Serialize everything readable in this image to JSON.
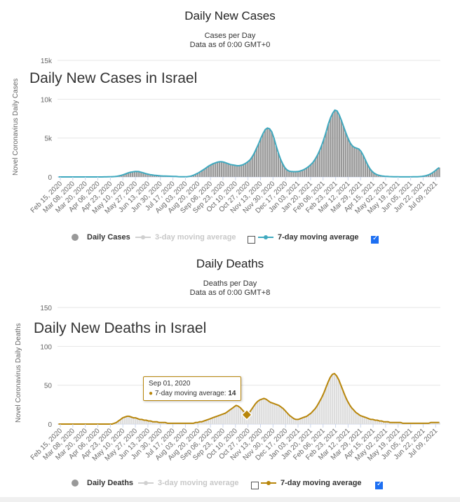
{
  "chart_data": [
    {
      "type": "bar",
      "title": "Daily New Cases",
      "subtitle": "Cases per Day",
      "subtitle2": "Data as of 0:00 GMT+0",
      "overlay_title": "Daily New Cases in Israel",
      "ylabel": "Novel Coronavirus Daily Cases",
      "ylim": [
        0,
        15000
      ],
      "yticks": [
        "0",
        "5k",
        "10k",
        "15k"
      ],
      "xticks": [
        "Feb 15, 2020",
        "Mar 08, 2020",
        "Mar 20, 2020",
        "Apr 06, 2020",
        "Apr 23, 2020",
        "May 10, 2020",
        "May 27, 2020",
        "Jun 13, 2020",
        "Jun 30, 2020",
        "Jul 17, 2020",
        "Aug 03, 2020",
        "Aug 20, 2020",
        "Sep 06, 2020",
        "Sep 23, 2020",
        "Oct 10, 2020",
        "Oct 27, 2020",
        "Nov 13, 2020",
        "Nov 30, 2020",
        "Dec 17, 2020",
        "Jan 03, 2021",
        "Jan 20, 2021",
        "Feb 06, 2021",
        "Feb 23, 2021",
        "Mar 12, 2021",
        "Mar 29, 2021",
        "Apr 15, 2021",
        "May 02, 2021",
        "May 19, 2021",
        "Jun 05, 2021",
        "Jun 22, 2021",
        "Jul 09, 2021"
      ],
      "series": [
        {
          "name": "Daily Cases",
          "type": "bar",
          "color": "#999999",
          "values": [
            0,
            0,
            0,
            0,
            0,
            0,
            0,
            0,
            0,
            0,
            0,
            0,
            0,
            0,
            0,
            0,
            0,
            0,
            0,
            0,
            3,
            5,
            8,
            14,
            22,
            35,
            50,
            90,
            150,
            220,
            310,
            420,
            520,
            600,
            650,
            700,
            700,
            690,
            600,
            520,
            430,
            360,
            300,
            260,
            220,
            190,
            160,
            140,
            120,
            110,
            100,
            90,
            80,
            70,
            60,
            40,
            30,
            20,
            20,
            30,
            60,
            120,
            220,
            340,
            480,
            650,
            820,
            1000,
            1200,
            1400,
            1550,
            1700,
            1800,
            1900,
            1950,
            1950,
            1900,
            1800,
            1700,
            1600,
            1550,
            1500,
            1450,
            1450,
            1500,
            1600,
            1750,
            1950,
            2200,
            2600,
            3100,
            3700,
            4300,
            5000,
            5600,
            6100,
            6300,
            6200,
            5800,
            5000,
            4000,
            3100,
            2300,
            1700,
            1200,
            900,
            750,
            700,
            680,
            680,
            700,
            760,
            850,
            980,
            1150,
            1350,
            1600,
            1900,
            2300,
            2800,
            3400,
            4100,
            4900,
            5800,
            6800,
            7600,
            8200,
            8600,
            8500,
            8000,
            7300,
            6500,
            5700,
            5000,
            4400,
            4000,
            3800,
            3700,
            3600,
            3300,
            2800,
            2200,
            1600,
            1100,
            750,
            500,
            330,
            230,
            160,
            110,
            80,
            60,
            45,
            35,
            25,
            20,
            15,
            12,
            10,
            8,
            8,
            10,
            12,
            15,
            20,
            30,
            45,
            70,
            110,
            170,
            260,
            390,
            560,
            760,
            1000,
            1200
          ]
        },
        {
          "name": "3-day moving average",
          "type": "line",
          "color": "#cccccc",
          "visible": false,
          "values": []
        },
        {
          "name": "7-day moving average",
          "type": "line",
          "color": "#3fa9bf",
          "values": [
            0,
            0,
            0,
            0,
            0,
            0,
            0,
            0,
            0,
            0,
            0,
            0,
            0,
            0,
            0,
            0,
            0,
            0,
            0,
            0,
            3,
            5,
            8,
            14,
            22,
            35,
            50,
            90,
            150,
            220,
            310,
            420,
            520,
            600,
            650,
            700,
            700,
            690,
            600,
            520,
            430,
            360,
            300,
            260,
            220,
            190,
            160,
            140,
            120,
            110,
            100,
            90,
            80,
            70,
            60,
            40,
            30,
            20,
            20,
            30,
            60,
            120,
            220,
            340,
            480,
            650,
            820,
            1000,
            1200,
            1400,
            1550,
            1700,
            1800,
            1900,
            1950,
            1950,
            1900,
            1800,
            1700,
            1600,
            1550,
            1500,
            1450,
            1450,
            1500,
            1600,
            1750,
            1950,
            2200,
            2600,
            3100,
            3700,
            4300,
            5000,
            5600,
            6100,
            6300,
            6200,
            5800,
            5000,
            4000,
            3100,
            2300,
            1700,
            1200,
            900,
            750,
            700,
            680,
            680,
            700,
            760,
            850,
            980,
            1150,
            1350,
            1600,
            1900,
            2300,
            2800,
            3400,
            4100,
            4900,
            5800,
            6800,
            7600,
            8200,
            8600,
            8500,
            8000,
            7300,
            6500,
            5700,
            5000,
            4400,
            4000,
            3800,
            3700,
            3600,
            3300,
            2800,
            2200,
            1600,
            1100,
            750,
            500,
            330,
            230,
            160,
            110,
            80,
            60,
            45,
            35,
            25,
            20,
            15,
            12,
            10,
            8,
            8,
            10,
            12,
            15,
            20,
            30,
            45,
            70,
            110,
            170,
            260,
            390,
            560,
            760,
            1000,
            1200
          ]
        }
      ]
    },
    {
      "type": "bar",
      "title": "Daily Deaths",
      "subtitle": "Deaths per Day",
      "subtitle2": "Data as of 0:00 GMT+8",
      "overlay_title": "Daily New Deaths in Israel",
      "ylabel": "Novel Coronavirus Daily Deaths",
      "ylim": [
        0,
        150
      ],
      "yticks": [
        "0",
        "50",
        "100",
        "150"
      ],
      "xticks": [
        "Feb 15, 2020",
        "Mar 08, 2020",
        "Mar 20, 2020",
        "Apr 06, 2020",
        "Apr 23, 2020",
        "May 10, 2020",
        "May 27, 2020",
        "Jun 13, 2020",
        "Jun 30, 2020",
        "Jul 17, 2020",
        "Aug 03, 2020",
        "Aug 20, 2020",
        "Sep 06, 2020",
        "Sep 23, 2020",
        "Oct 10, 2020",
        "Oct 27, 2020",
        "Nov 13, 2020",
        "Nov 30, 2020",
        "Dec 17, 2020",
        "Jan 03, 2021",
        "Jan 20, 2021",
        "Feb 06, 2021",
        "Feb 23, 2021",
        "Mar 12, 2021",
        "Mar 29, 2021",
        "Apr 15, 2021",
        "May 02, 2021",
        "May 19, 2021",
        "Jun 05, 2021",
        "Jun 22, 2021",
        "Jul 09, 2021"
      ],
      "series": [
        {
          "name": "Daily Deaths",
          "type": "bar",
          "color": "#dddddd",
          "values": [
            0,
            0,
            0,
            0,
            0,
            0,
            0,
            0,
            0,
            0,
            0,
            0,
            0,
            0,
            0,
            0,
            0,
            0,
            0,
            0,
            0,
            0,
            0,
            0,
            0,
            0,
            1,
            2,
            4,
            6,
            8,
            9,
            10,
            10,
            9,
            8,
            8,
            7,
            6,
            6,
            5,
            5,
            4,
            4,
            3,
            3,
            3,
            2,
            2,
            2,
            2,
            1,
            1,
            1,
            1,
            1,
            1,
            1,
            1,
            1,
            1,
            1,
            1,
            1,
            2,
            2,
            3,
            3,
            4,
            5,
            6,
            7,
            8,
            9,
            10,
            11,
            12,
            13,
            14,
            16,
            18,
            20,
            22,
            24,
            23,
            21,
            18,
            15,
            12,
            14,
            18,
            22,
            26,
            29,
            31,
            32,
            33,
            32,
            30,
            28,
            27,
            26,
            25,
            24,
            22,
            20,
            17,
            14,
            11,
            9,
            7,
            6,
            6,
            7,
            8,
            9,
            10,
            12,
            14,
            17,
            20,
            24,
            29,
            34,
            40,
            47,
            54,
            60,
            64,
            65,
            62,
            57,
            50,
            43,
            36,
            30,
            25,
            21,
            18,
            15,
            13,
            11,
            10,
            9,
            8,
            7,
            6,
            6,
            5,
            5,
            4,
            4,
            3,
            3,
            3,
            2,
            2,
            2,
            2,
            2,
            2,
            1,
            1,
            1,
            1,
            1,
            1,
            1,
            1,
            1,
            1,
            1,
            1,
            1,
            2,
            2,
            2,
            2,
            2
          ]
        },
        {
          "name": "3-day moving average",
          "type": "line",
          "color": "#cccccc",
          "visible": false,
          "values": []
        },
        {
          "name": "7-day moving average",
          "type": "line",
          "color": "#b8860b",
          "values": [
            0,
            0,
            0,
            0,
            0,
            0,
            0,
            0,
            0,
            0,
            0,
            0,
            0,
            0,
            0,
            0,
            0,
            0,
            0,
            0,
            0,
            0,
            0,
            0,
            0,
            0,
            1,
            2,
            4,
            6,
            8,
            9,
            10,
            10,
            9,
            8,
            8,
            7,
            6,
            6,
            5,
            5,
            4,
            4,
            3,
            3,
            3,
            2,
            2,
            2,
            2,
            1,
            1,
            1,
            1,
            1,
            1,
            1,
            1,
            1,
            1,
            1,
            1,
            1,
            2,
            2,
            3,
            3,
            4,
            5,
            6,
            7,
            8,
            9,
            10,
            11,
            12,
            13,
            14,
            16,
            18,
            20,
            22,
            24,
            23,
            21,
            18,
            15,
            12,
            14,
            18,
            22,
            26,
            29,
            31,
            32,
            33,
            32,
            30,
            28,
            27,
            26,
            25,
            24,
            22,
            20,
            17,
            14,
            11,
            9,
            7,
            6,
            6,
            7,
            8,
            9,
            10,
            12,
            14,
            17,
            20,
            24,
            29,
            34,
            40,
            47,
            54,
            60,
            64,
            65,
            62,
            57,
            50,
            43,
            36,
            30,
            25,
            21,
            18,
            15,
            13,
            11,
            10,
            9,
            8,
            7,
            6,
            6,
            5,
            5,
            4,
            4,
            3,
            3,
            3,
            2,
            2,
            2,
            2,
            2,
            2,
            1,
            1,
            1,
            1,
            1,
            1,
            1,
            1,
            1,
            1,
            1,
            1,
            1,
            2,
            2,
            2,
            2,
            2
          ]
        }
      ],
      "tooltip": {
        "date": "Sep 01, 2020",
        "label": "7-day moving average:",
        "value": "14"
      }
    }
  ],
  "legend": {
    "daily_cases": "Daily Cases",
    "daily_deaths": "Daily Deaths",
    "three_day": "3-day moving average",
    "seven_day": "7-day moving average"
  }
}
